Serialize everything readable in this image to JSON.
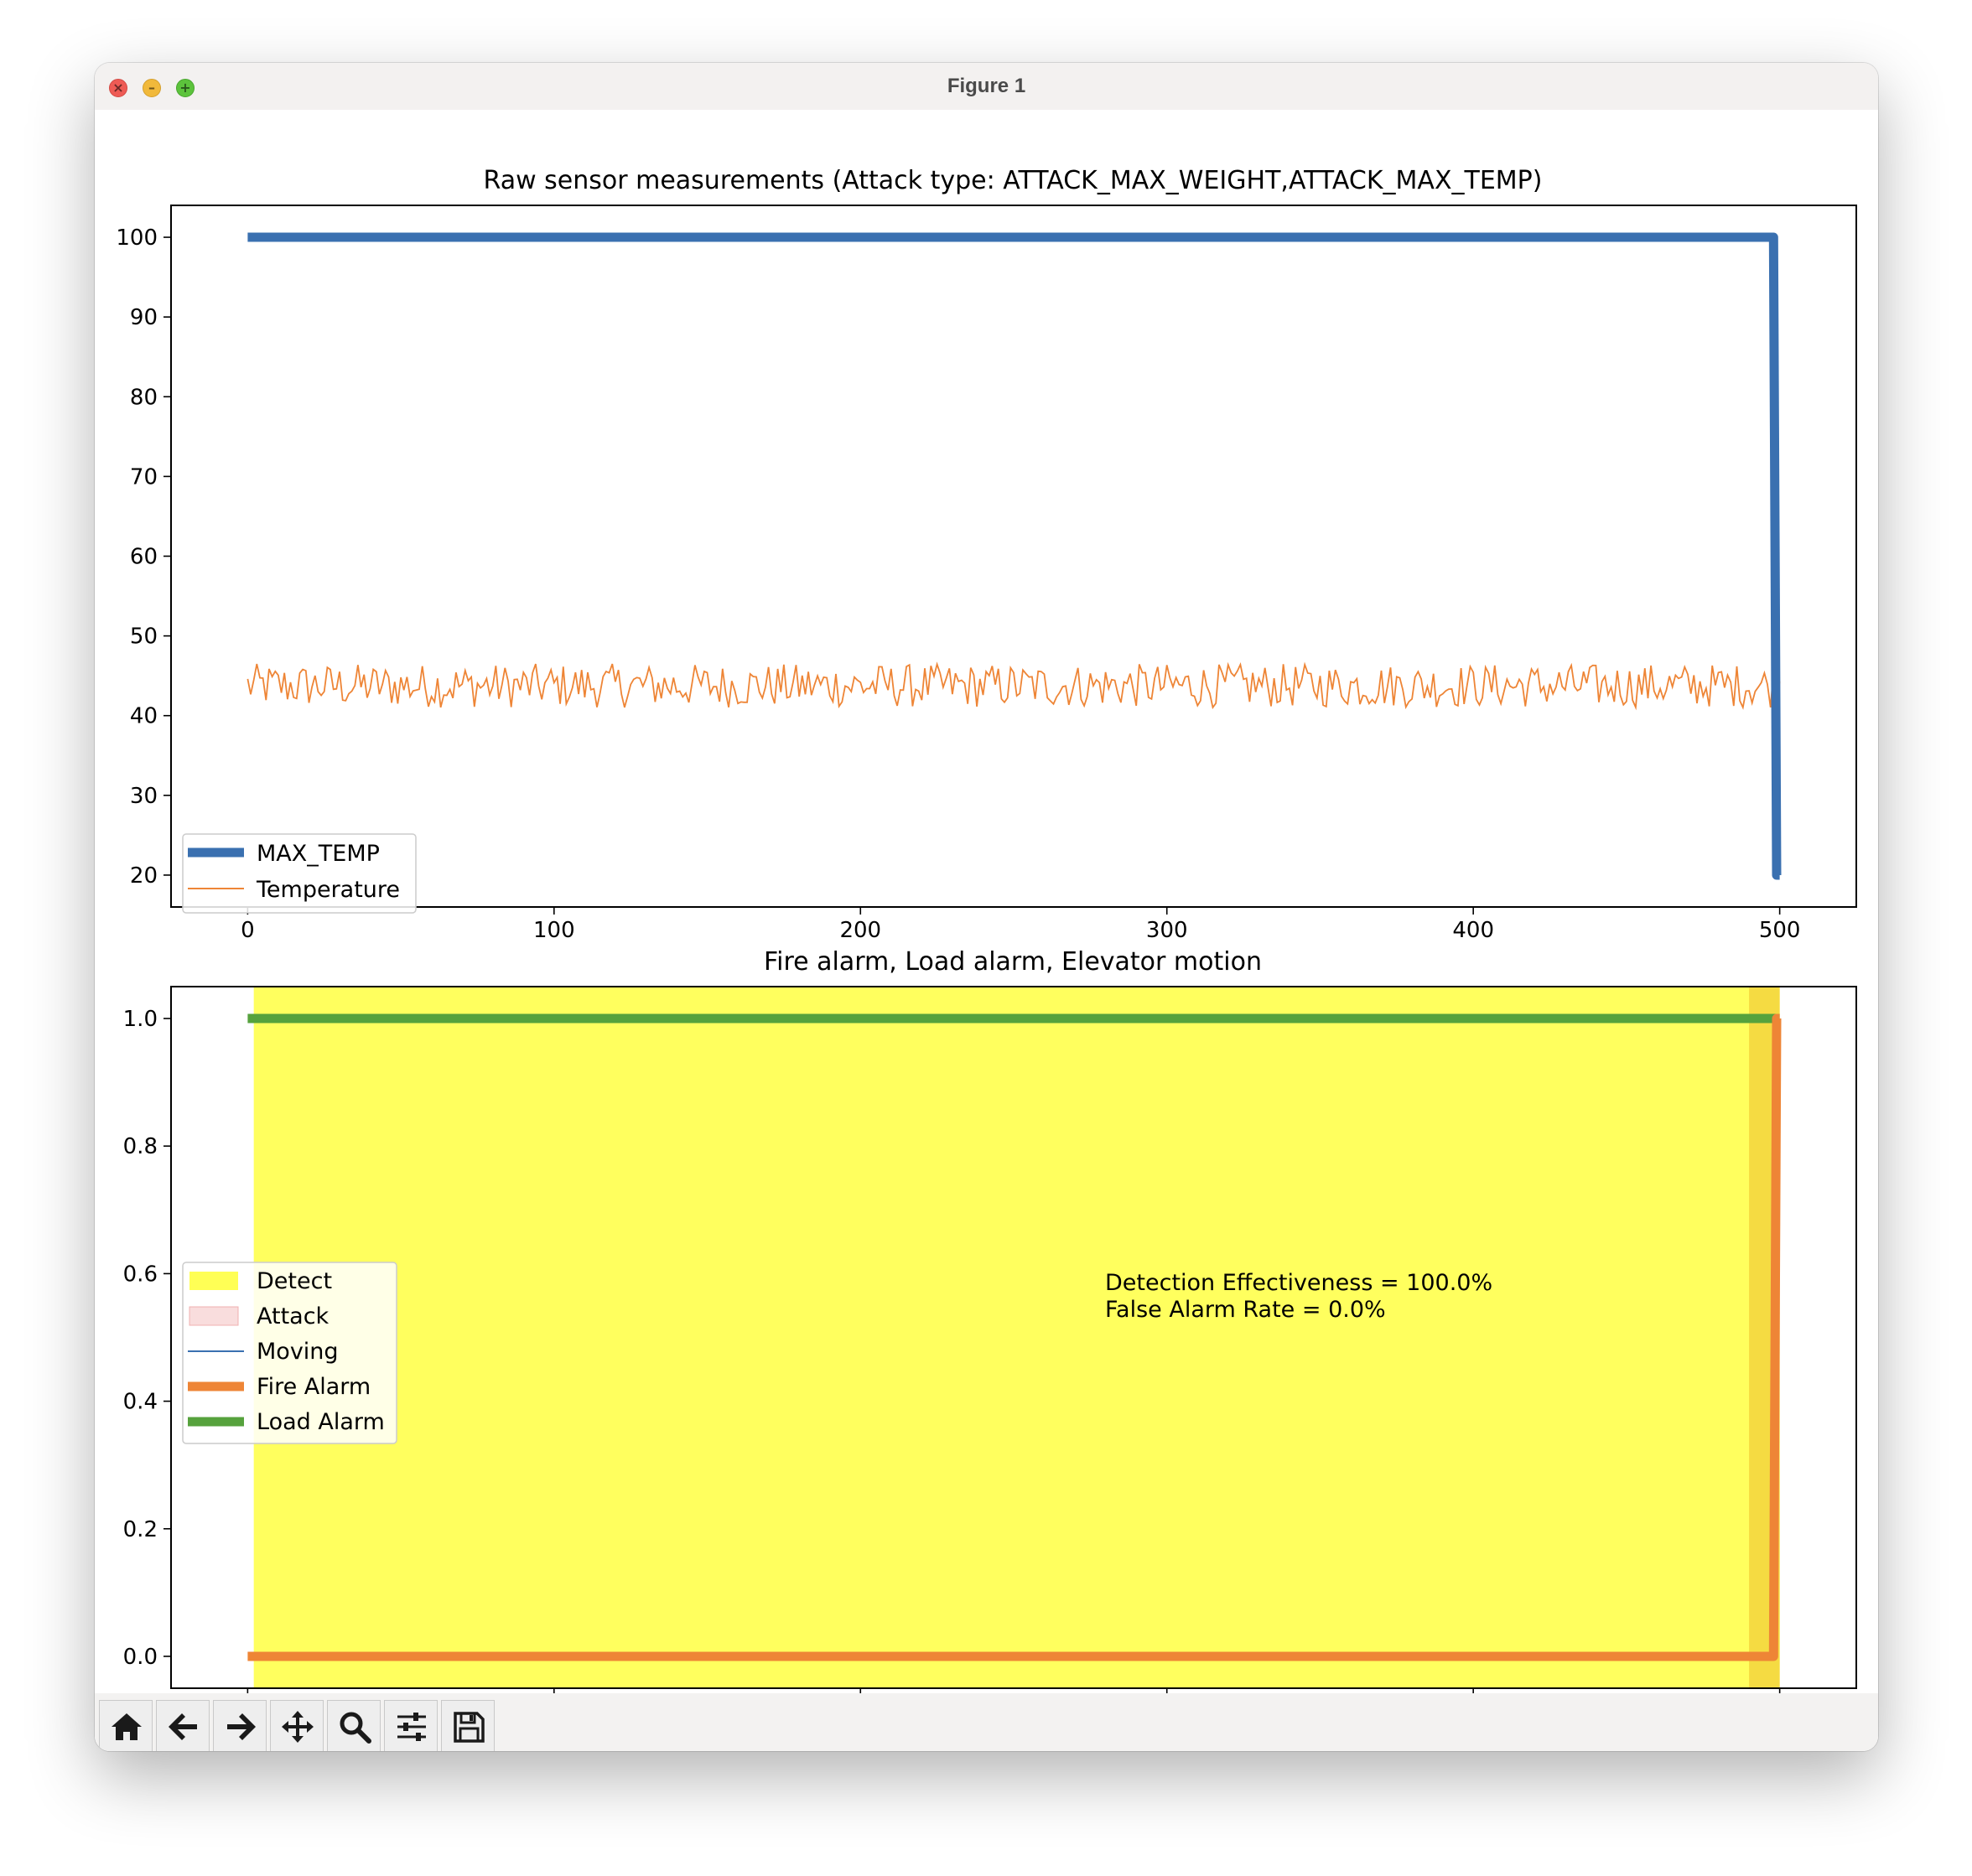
{
  "window": {
    "title": "Figure 1"
  },
  "toolbar": {
    "buttons": [
      {
        "icon": "home-icon"
      },
      {
        "icon": "arrow-left-icon"
      },
      {
        "icon": "arrow-right-icon"
      },
      {
        "icon": "pan-icon"
      },
      {
        "icon": "zoom-icon"
      },
      {
        "icon": "sliders-icon"
      },
      {
        "icon": "save-icon"
      }
    ]
  },
  "chart_data": [
    {
      "type": "line",
      "title": "Raw sensor measurements (Attack type: ATTACK_MAX_WEIGHT,ATTACK_MAX_TEMP)",
      "xlim": [
        -25,
        525
      ],
      "ylim": [
        16,
        104
      ],
      "xticks": [
        0,
        100,
        200,
        300,
        400,
        500
      ],
      "yticks": [
        20,
        30,
        40,
        50,
        60,
        70,
        80,
        90,
        100
      ],
      "legend_position": "lower-left",
      "series": [
        {
          "name": "MAX_TEMP",
          "color": "#3a70b0",
          "linewidth": "thick",
          "points": [
            [
              0,
              100
            ],
            [
              498,
              100
            ],
            [
              499,
              20
            ],
            [
              500,
              20
            ]
          ]
        },
        {
          "name": "Temperature",
          "color": "#ee8536",
          "linewidth": "thin",
          "x_range": [
            0,
            500
          ],
          "approx_mean": 43.6,
          "approx_min": 41,
          "approx_max": 46.5
        }
      ]
    },
    {
      "type": "line",
      "title": "Fire alarm, Load alarm, Elevator motion",
      "xlim": [
        -25,
        525
      ],
      "ylim": [
        -0.05,
        1.05
      ],
      "xticks": [
        0,
        100,
        200,
        300,
        400,
        500
      ],
      "yticks": [
        "0.0",
        "0.2",
        "0.4",
        "0.6",
        "0.8",
        "1.0"
      ],
      "legend_position": "center-left",
      "spans": [
        {
          "name": "Detect",
          "color": "#ffff55",
          "x": [
            2,
            500
          ]
        },
        {
          "name": "Attack",
          "color": "#f7cfcf",
          "x": [
            490,
            500
          ]
        }
      ],
      "series": [
        {
          "name": "Moving",
          "color": "#3a70b0",
          "linewidth": "thin",
          "points": []
        },
        {
          "name": "Fire Alarm",
          "color": "#ee8536",
          "linewidth": "thick",
          "points": [
            [
              0,
              0
            ],
            [
              498,
              0
            ],
            [
              499,
              1
            ],
            [
              500,
              1
            ]
          ]
        },
        {
          "name": "Load Alarm",
          "color": "#56a23d",
          "linewidth": "thick",
          "points": [
            [
              0,
              1
            ],
            [
              500,
              1
            ]
          ]
        }
      ],
      "annotations": [
        "Detection Effectiveness = 100.0%",
        "False Alarm Rate = 0.0%"
      ]
    }
  ]
}
